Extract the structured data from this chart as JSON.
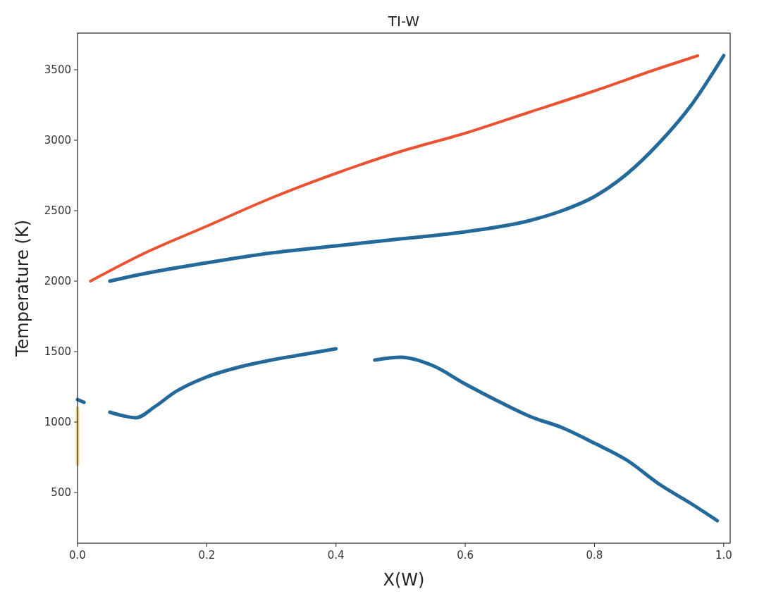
{
  "chart_data": {
    "type": "line",
    "title": "TI-W",
    "xlabel": "X(W)",
    "ylabel": "Temperature (K)",
    "xlim": [
      0,
      1.01
    ],
    "ylim": [
      140,
      3760
    ],
    "xticks": [
      {
        "value": 0,
        "label": "0.0"
      },
      {
        "value": 0.2,
        "label": "0.2"
      },
      {
        "value": 0.4,
        "label": "0.4"
      },
      {
        "value": 0.6,
        "label": "0.6"
      },
      {
        "value": 0.8,
        "label": "0.8"
      },
      {
        "value": 1,
        "label": "1.0"
      }
    ],
    "yticks": [
      500,
      1000,
      1500,
      2000,
      2500,
      3000,
      3500
    ],
    "grid": false,
    "marker": "none",
    "line_style": "solid",
    "series": [
      {
        "color": "#e8401c",
        "x": [
          0.02,
          0.1,
          0.2,
          0.3,
          0.4,
          0.5,
          0.6,
          0.7,
          0.8,
          0.9,
          0.96
        ],
        "values": [
          2000,
          2190,
          2390,
          2590,
          2765,
          2920,
          3050,
          3200,
          3350,
          3510,
          3600
        ]
      },
      {
        "color": "#0b5a8f",
        "x": [
          0.05,
          0.1,
          0.2,
          0.3,
          0.4,
          0.5,
          0.6,
          0.7,
          0.75,
          0.8,
          0.85,
          0.9,
          0.95,
          1.0
        ],
        "values": [
          2000,
          2050,
          2130,
          2200,
          2250,
          2300,
          2350,
          2430,
          2500,
          2600,
          2760,
          2980,
          3250,
          3600
        ]
      },
      {
        "color": "#0b5a8f",
        "x": [
          0.05,
          0.07,
          0.09,
          0.12,
          0.15,
          0.2,
          0.25,
          0.3,
          0.35,
          0.4
        ],
        "values": [
          1070,
          1045,
          1030,
          1110,
          1210,
          1320,
          1390,
          1440,
          1480,
          1520
        ]
      },
      {
        "color": "#0b5a8f",
        "x": [
          0.46,
          0.5,
          0.55,
          0.6,
          0.65,
          0.7,
          0.75,
          0.8,
          0.85,
          0.9,
          0.95,
          0.99
        ],
        "values": [
          1440,
          1460,
          1400,
          1270,
          1150,
          1040,
          960,
          850,
          730,
          560,
          420,
          300
        ]
      },
      {
        "color": "#0b5a8f",
        "x": [
          0.0,
          0.01
        ],
        "values": [
          1160,
          1140
        ]
      },
      {
        "color": "#f3d36b",
        "x": [
          0.0,
          0.0
        ],
        "values": [
          700,
          1100
        ]
      }
    ]
  }
}
